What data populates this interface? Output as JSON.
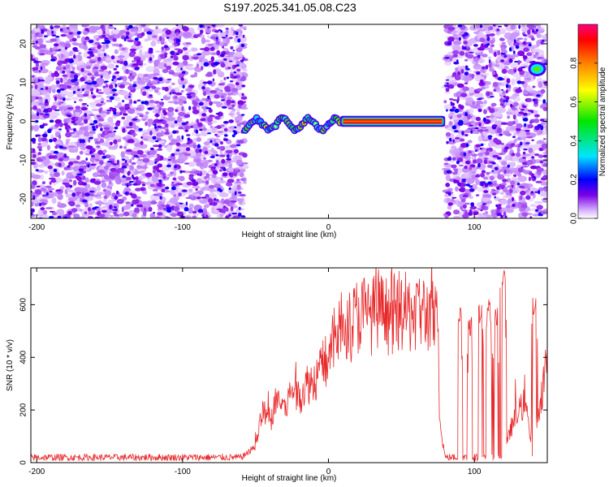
{
  "title": "S197.2025.341.05.08.C23",
  "chart_data": [
    {
      "type": "heatmap",
      "name": "spectrogram",
      "xlabel": "Height of straight line (km)",
      "ylabel": "Frequency (Hz)",
      "xlim": [
        -204,
        150
      ],
      "ylim": [
        -25,
        25
      ],
      "xticks": [
        -200,
        -100,
        0,
        100
      ],
      "yticks": [
        -20,
        -10,
        0,
        10,
        20
      ],
      "colorbar": {
        "label": "Normalized spectral amplitude",
        "range": [
          0,
          1
        ],
        "ticks": [
          0.0,
          0.2,
          0.4,
          0.6,
          0.8
        ],
        "colormap": [
          "#ffffff",
          "#d9b3ff",
          "#7a00e6",
          "#0000ff",
          "#00e5ff",
          "#00e600",
          "#ffff00",
          "#ff8000",
          "#ff0000",
          "#ff0080"
        ]
      },
      "regions": [
        {
          "name": "noise-left",
          "x_range": [
            -204,
            -57
          ],
          "amplitude": "0.1-0.3 scattered"
        },
        {
          "name": "signal-trace",
          "x_range": [
            -57,
            80
          ],
          "frequency_hz": 0,
          "amplitude": "up to 1.0"
        },
        {
          "name": "noise-right",
          "x_range": [
            80,
            150
          ],
          "amplitude": "0.1-0.3 scattered"
        },
        {
          "name": "tone-13hz",
          "x_range": [
            138,
            148
          ],
          "frequency_hz": 13.5,
          "amplitude": "0.3-0.9"
        }
      ]
    },
    {
      "type": "line",
      "name": "snr",
      "xlabel": "Height of straight line (km)",
      "ylabel": "SNR (10 * v/v)",
      "xlim": [
        -204,
        150
      ],
      "ylim": [
        0,
        740
      ],
      "xticks": [
        -200,
        -100,
        0,
        100
      ],
      "yticks": [
        0,
        200,
        400,
        600
      ],
      "color": "#e8282a",
      "series": [
        {
          "name": "SNR",
          "x": [
            -204,
            -180,
            -160,
            -140,
            -120,
            -100,
            -80,
            -60,
            -50,
            -45,
            -40,
            -35,
            -30,
            -25,
            -20,
            -15,
            -10,
            -5,
            0,
            5,
            10,
            15,
            20,
            25,
            30,
            35,
            40,
            45,
            50,
            55,
            60,
            65,
            70,
            75,
            76,
            80,
            85,
            90,
            95,
            100,
            105,
            110,
            115,
            120,
            125,
            130,
            135,
            140,
            145,
            150
          ],
          "y": [
            20,
            20,
            20,
            20,
            20,
            20,
            20,
            20,
            60,
            200,
            150,
            250,
            200,
            280,
            250,
            300,
            310,
            360,
            400,
            480,
            530,
            520,
            560,
            570,
            560,
            575,
            560,
            565,
            575,
            565,
            580,
            570,
            560,
            520,
            160,
            20,
            20,
            20,
            20,
            20,
            20,
            20,
            20,
            20,
            130,
            190,
            230,
            20,
            230,
            400
          ],
          "spikes": [
            {
              "x": 90,
              "low": 20,
              "high": 590
            },
            {
              "x": 97,
              "low": 20,
              "high": 560
            },
            {
              "x": 104,
              "low": 20,
              "high": 600
            },
            {
              "x": 110,
              "low": 20,
              "high": 620
            },
            {
              "x": 115,
              "low": 20,
              "high": 600
            },
            {
              "x": 120,
              "low": 20,
              "high": 740
            },
            {
              "x": 141,
              "low": 20,
              "high": 640
            }
          ]
        }
      ]
    }
  ]
}
